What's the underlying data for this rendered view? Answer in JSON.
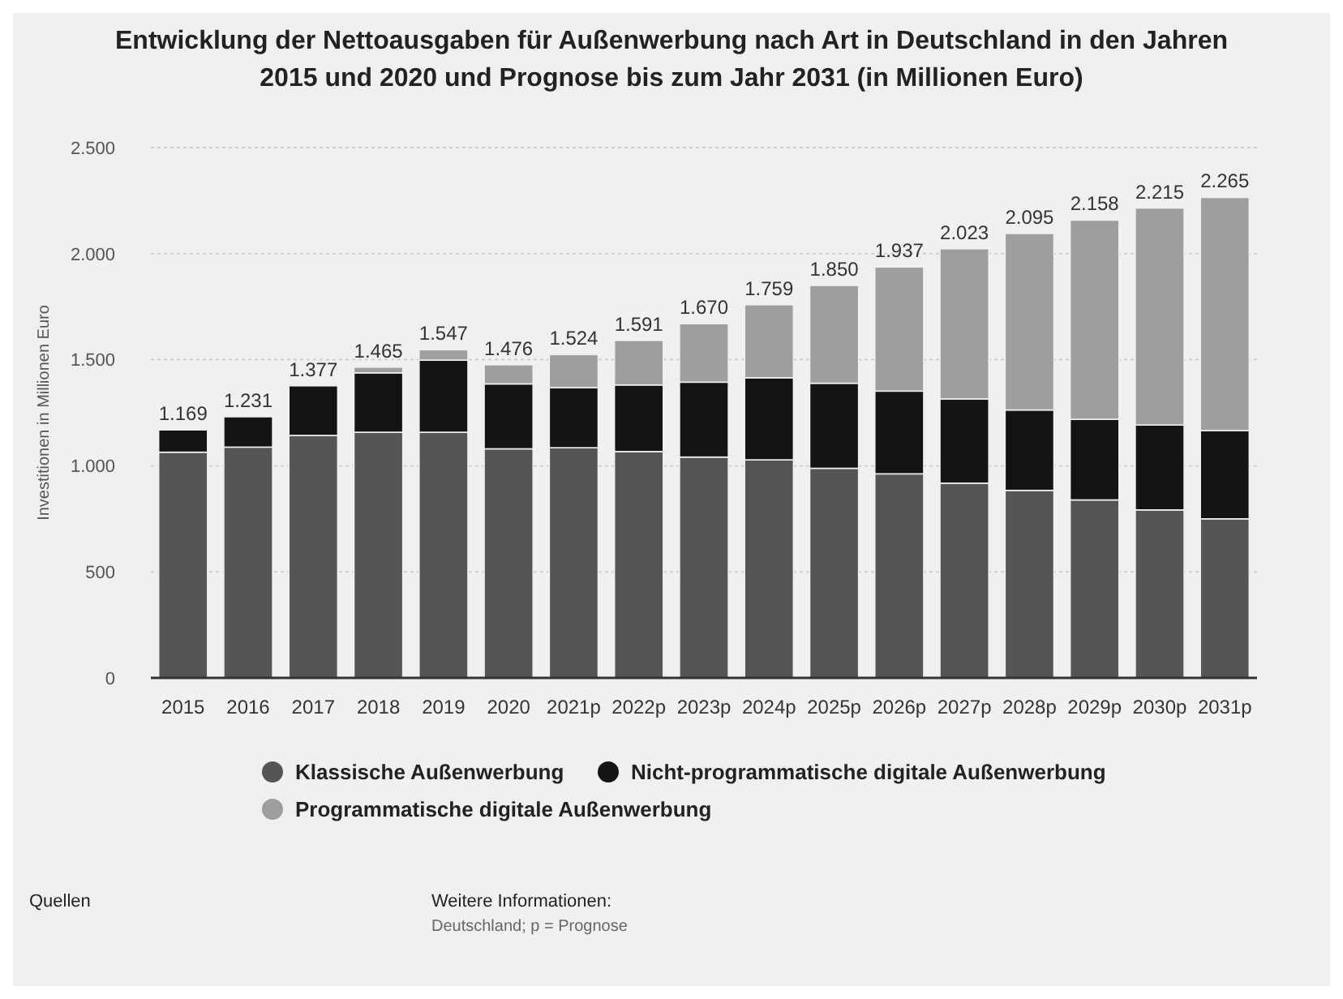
{
  "chart_data": {
    "type": "bar",
    "stacked": true,
    "title": "Entwicklung der Nettoausgaben für Außenwerbung nach Art in Deutschland in den Jahren 2015 und 2020 und Prognose bis zum Jahr 2031 (in Millionen Euro)",
    "ylabel": "Investitionen in Millionen Euro",
    "categories": [
      "2015",
      "2016",
      "2017",
      "2018",
      "2019",
      "2020",
      "2021p",
      "2022p",
      "2023p",
      "2024p",
      "2025p",
      "2026p",
      "2027p",
      "2028p",
      "2029p",
      "2030p",
      "2031p"
    ],
    "series": [
      {
        "name": "Klassische Außenwerbung",
        "color": "#555555",
        "values": [
          1064,
          1088,
          1143,
          1158,
          1158,
          1080,
          1085,
          1067,
          1041,
          1028,
          988,
          962,
          918,
          884,
          839,
          792,
          750
        ]
      },
      {
        "name": "Nicht-programmatische digitale Außenwerbung",
        "color": "#141414",
        "values": [
          105,
          143,
          234,
          280,
          340,
          306,
          283,
          314,
          353,
          387,
          401,
          390,
          397,
          379,
          380,
          400,
          416
        ]
      },
      {
        "name": "Programmatische digitale Außenwerbung",
        "color": "#9e9e9e",
        "values": [
          0,
          0,
          0,
          27,
          49,
          90,
          156,
          210,
          276,
          344,
          461,
          585,
          708,
          832,
          939,
          1023,
          1099
        ]
      }
    ],
    "totals": [
      "1.169",
      "1.231",
      "1.377",
      "1.465",
      "1.547",
      "1.476",
      "1.524",
      "1.591",
      "1.670",
      "1.759",
      "1.850",
      "1.937",
      "2.023",
      "2.095",
      "2.158",
      "2.215",
      "2.265"
    ],
    "ylim": [
      0,
      2500
    ],
    "yticks": [
      0,
      {
        "value": 500,
        "label": "500"
      },
      {
        "value": 1000,
        "label": "1.000"
      },
      {
        "value": 1500,
        "label": "1.500"
      },
      {
        "value": 2000,
        "label": "2.000"
      },
      {
        "value": 2500,
        "label": "2.500"
      }
    ],
    "grid": "y",
    "legend": "bottom",
    "annotations": [
      "Quellen",
      "Weitere Informationen:",
      "Deutschland; p = Prognose"
    ]
  }
}
